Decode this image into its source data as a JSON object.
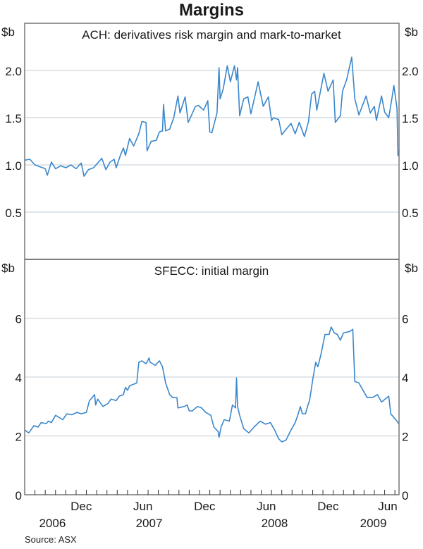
{
  "chart_data": [
    {
      "type": "line",
      "title": "Margins",
      "panel_title": "ACH: derivatives risk margin and mark-to-market",
      "ylabel": "$b",
      "ylim": [
        0,
        2.5
      ],
      "yticks": [
        0.5,
        1.0,
        1.5,
        2.0
      ],
      "ytick_labels": [
        "0.5",
        "1.0",
        "1.5",
        "2.0"
      ],
      "x_units": "months since Jul 2006",
      "xlim": [
        0,
        36.4
      ],
      "grid": true,
      "color": "#3a87cc",
      "series": [
        {
          "name": "ACH",
          "points": [
            [
              0,
              1.05
            ],
            [
              0.5,
              1.06
            ],
            [
              1,
              1.0
            ],
            [
              1.5,
              0.98
            ],
            [
              2.0,
              0.96
            ],
            [
              2.2,
              0.89
            ],
            [
              2.6,
              1.03
            ],
            [
              3.0,
              0.96
            ],
            [
              3.5,
              0.99
            ],
            [
              4.0,
              0.97
            ],
            [
              4.5,
              1.0
            ],
            [
              5.0,
              0.96
            ],
            [
              5.5,
              1.02
            ],
            [
              5.77,
              0.88
            ],
            [
              6.2,
              0.95
            ],
            [
              6.7,
              0.97
            ],
            [
              7.1,
              1.02
            ],
            [
              7.5,
              1.07
            ],
            [
              7.9,
              0.95
            ],
            [
              8.3,
              1.03
            ],
            [
              8.7,
              1.06
            ],
            [
              8.9,
              0.97
            ],
            [
              9.3,
              1.1
            ],
            [
              9.6,
              1.18
            ],
            [
              9.8,
              1.1
            ],
            [
              10.2,
              1.28
            ],
            [
              10.6,
              1.2
            ],
            [
              11.1,
              1.33
            ],
            [
              11.4,
              1.46
            ],
            [
              11.8,
              1.45
            ],
            [
              11.9,
              1.15
            ],
            [
              12.3,
              1.25
            ],
            [
              12.8,
              1.26
            ],
            [
              13.1,
              1.35
            ],
            [
              13.4,
              1.36
            ],
            [
              13.5,
              1.64
            ],
            [
              13.7,
              1.36
            ],
            [
              14.1,
              1.38
            ],
            [
              14.5,
              1.5
            ],
            [
              14.9,
              1.73
            ],
            [
              15.1,
              1.55
            ],
            [
              15.6,
              1.72
            ],
            [
              15.9,
              1.45
            ],
            [
              16.2,
              1.52
            ],
            [
              16.6,
              1.62
            ],
            [
              16.9,
              1.63
            ],
            [
              17.4,
              1.58
            ],
            [
              17.8,
              1.68
            ],
            [
              18.0,
              1.35
            ],
            [
              18.2,
              1.34
            ],
            [
              18.7,
              1.55
            ],
            [
              18.9,
              2.03
            ],
            [
              19.0,
              1.7
            ],
            [
              19.3,
              1.8
            ],
            [
              19.7,
              2.05
            ],
            [
              20.0,
              1.88
            ],
            [
              20.4,
              2.05
            ],
            [
              20.6,
              1.9
            ],
            [
              20.7,
              2.03
            ],
            [
              20.9,
              1.52
            ],
            [
              21.3,
              1.7
            ],
            [
              21.7,
              1.72
            ],
            [
              22.0,
              1.54
            ],
            [
              22.7,
              1.88
            ],
            [
              23.2,
              1.62
            ],
            [
              23.7,
              1.72
            ],
            [
              24.0,
              1.47
            ],
            [
              24.2,
              1.5
            ],
            [
              24.7,
              1.48
            ],
            [
              25.0,
              1.32
            ],
            [
              25.9,
              1.44
            ],
            [
              26.3,
              1.33
            ],
            [
              26.7,
              1.45
            ],
            [
              27.2,
              1.3
            ],
            [
              27.6,
              1.46
            ],
            [
              27.9,
              1.75
            ],
            [
              28.2,
              1.78
            ],
            [
              28.4,
              1.58
            ],
            [
              29.1,
              1.97
            ],
            [
              29.5,
              1.78
            ],
            [
              30.0,
              1.9
            ],
            [
              30.2,
              1.45
            ],
            [
              30.7,
              1.52
            ],
            [
              30.9,
              1.78
            ],
            [
              31.3,
              1.9
            ],
            [
              31.8,
              2.14
            ],
            [
              32.1,
              1.7
            ],
            [
              32.5,
              1.53
            ],
            [
              33.2,
              1.73
            ],
            [
              33.6,
              1.55
            ],
            [
              34.0,
              1.62
            ],
            [
              34.2,
              1.47
            ],
            [
              34.7,
              1.73
            ],
            [
              35.0,
              1.56
            ],
            [
              35.4,
              1.5
            ],
            [
              35.7,
              1.7
            ],
            [
              35.9,
              1.84
            ],
            [
              36.2,
              1.6
            ],
            [
              36.3,
              1.1
            ],
            [
              36.4,
              1.15
            ]
          ]
        }
      ]
    },
    {
      "type": "line",
      "panel_title": "SFECC: initial margin",
      "ylabel": "$b",
      "ylim": [
        0,
        8
      ],
      "yticks": [
        0,
        2,
        4,
        6
      ],
      "ytick_labels": [
        "0",
        "2",
        "4",
        "6"
      ],
      "x_units": "months since Jul 2006",
      "xlim": [
        0,
        36.4
      ],
      "grid": true,
      "color": "#3a87cc",
      "series": [
        {
          "name": "SFECC",
          "points": [
            [
              0,
              2.2
            ],
            [
              0.4,
              2.1
            ],
            [
              0.9,
              2.35
            ],
            [
              1.3,
              2.3
            ],
            [
              1.6,
              2.45
            ],
            [
              2.1,
              2.42
            ],
            [
              2.3,
              2.5
            ],
            [
              2.6,
              2.45
            ],
            [
              3.0,
              2.7
            ],
            [
              3.7,
              2.55
            ],
            [
              4.1,
              2.75
            ],
            [
              4.6,
              2.72
            ],
            [
              5.1,
              2.8
            ],
            [
              5.5,
              2.75
            ],
            [
              6.0,
              2.8
            ],
            [
              6.3,
              3.2
            ],
            [
              6.8,
              3.4
            ],
            [
              6.9,
              3.05
            ],
            [
              7.1,
              3.25
            ],
            [
              7.6,
              3.0
            ],
            [
              8.1,
              3.1
            ],
            [
              8.4,
              3.25
            ],
            [
              8.9,
              3.2
            ],
            [
              9.2,
              3.35
            ],
            [
              9.6,
              3.4
            ],
            [
              9.8,
              3.65
            ],
            [
              10.0,
              3.55
            ],
            [
              10.2,
              3.7
            ],
            [
              10.9,
              3.8
            ],
            [
              11.1,
              4.5
            ],
            [
              11.4,
              4.55
            ],
            [
              11.8,
              4.45
            ],
            [
              12.1,
              4.65
            ],
            [
              12.2,
              4.5
            ],
            [
              12.7,
              4.4
            ],
            [
              13.1,
              4.55
            ],
            [
              13.4,
              4.35
            ],
            [
              13.7,
              3.8
            ],
            [
              14.1,
              3.4
            ],
            [
              14.4,
              3.3
            ],
            [
              14.8,
              3.3
            ],
            [
              14.9,
              2.95
            ],
            [
              15.5,
              3.0
            ],
            [
              15.8,
              3.05
            ],
            [
              16.0,
              2.85
            ],
            [
              16.3,
              2.85
            ],
            [
              16.8,
              3.0
            ],
            [
              17.2,
              2.95
            ],
            [
              17.6,
              2.8
            ],
            [
              18.1,
              2.7
            ],
            [
              18.4,
              2.3
            ],
            [
              18.8,
              2.15
            ],
            [
              18.9,
              1.95
            ],
            [
              19.1,
              2.3
            ],
            [
              19.4,
              2.55
            ],
            [
              19.9,
              2.5
            ],
            [
              20.2,
              3.05
            ],
            [
              20.5,
              2.95
            ],
            [
              20.6,
              3.97
            ],
            [
              20.7,
              3.0
            ],
            [
              20.9,
              2.7
            ],
            [
              21.3,
              2.25
            ],
            [
              21.8,
              2.1
            ],
            [
              22.3,
              2.3
            ],
            [
              22.9,
              2.5
            ],
            [
              23.4,
              2.4
            ],
            [
              23.9,
              2.45
            ],
            [
              24.3,
              2.2
            ],
            [
              24.7,
              1.9
            ],
            [
              25.0,
              1.8
            ],
            [
              25.4,
              1.85
            ],
            [
              25.9,
              2.2
            ],
            [
              26.3,
              2.45
            ],
            [
              26.6,
              2.75
            ],
            [
              26.8,
              3.0
            ],
            [
              27.0,
              2.75
            ],
            [
              27.3,
              2.75
            ],
            [
              27.5,
              3.0
            ],
            [
              27.7,
              3.2
            ],
            [
              28.0,
              3.9
            ],
            [
              28.3,
              4.5
            ],
            [
              28.5,
              4.35
            ],
            [
              28.8,
              4.75
            ],
            [
              29.2,
              5.45
            ],
            [
              29.6,
              5.45
            ],
            [
              29.8,
              5.7
            ],
            [
              30.1,
              5.5
            ],
            [
              30.4,
              5.45
            ],
            [
              30.7,
              5.25
            ],
            [
              31.0,
              5.5
            ],
            [
              31.6,
              5.55
            ],
            [
              31.9,
              5.62
            ],
            [
              32.1,
              3.85
            ],
            [
              32.5,
              3.8
            ],
            [
              32.9,
              3.55
            ],
            [
              33.3,
              3.3
            ],
            [
              33.8,
              3.3
            ],
            [
              34.3,
              3.4
            ],
            [
              34.7,
              3.15
            ],
            [
              35.4,
              3.35
            ],
            [
              35.6,
              2.75
            ],
            [
              36.2,
              2.5
            ],
            [
              36.4,
              2.4
            ]
          ]
        }
      ]
    }
  ],
  "x_axis": {
    "month_labels": [
      {
        "m": 5.5,
        "label": "Dec"
      },
      {
        "m": 11.5,
        "label": "Jun"
      },
      {
        "m": 17.5,
        "label": "Dec"
      },
      {
        "m": 23.5,
        "label": "Jun"
      },
      {
        "m": 29.5,
        "label": "Dec"
      },
      {
        "m": 35.5,
        "label": "Jun"
      }
    ],
    "year_labels": [
      {
        "m": 2.7,
        "label": "2006"
      },
      {
        "m": 12.1,
        "label": "2007"
      },
      {
        "m": 24.3,
        "label": "2008"
      },
      {
        "m": 33.9,
        "label": "2009"
      }
    ]
  },
  "source": "Source: ASX"
}
